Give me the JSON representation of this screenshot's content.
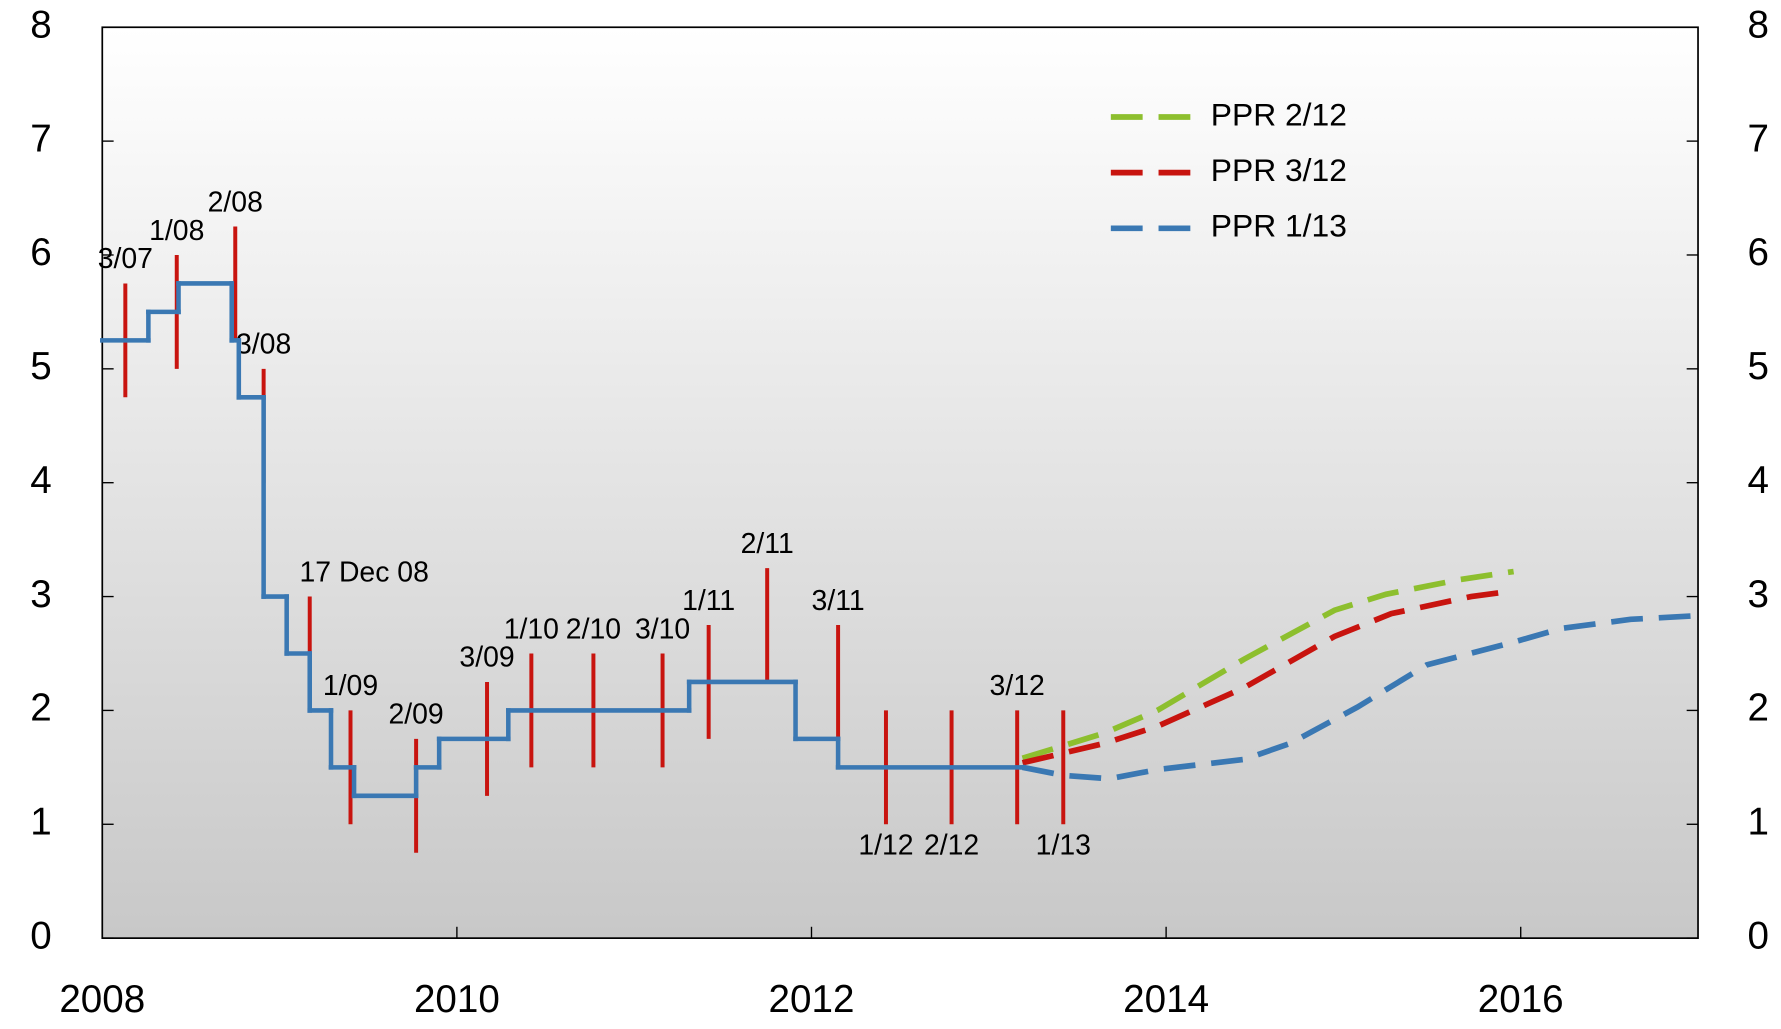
{
  "chart_data": {
    "type": "line",
    "xlim": [
      2008,
      2017
    ],
    "xticks": [
      2008,
      2010,
      2012,
      2014,
      2016
    ],
    "ylim": [
      0,
      8
    ],
    "yticks": [
      0,
      1,
      2,
      3,
      4,
      5,
      6,
      7,
      8
    ],
    "y2lim": [
      0,
      8
    ],
    "y2ticks": [
      0,
      1,
      2,
      3,
      4,
      5,
      6,
      7,
      8
    ],
    "policy_rate": {
      "step": "post",
      "color": "#3a78b3",
      "x": [
        2008.0,
        2008.26,
        2008.43,
        2008.73,
        2008.77,
        2008.91,
        2009.04,
        2009.17,
        2009.29,
        2009.42,
        2009.77,
        2009.9,
        2010.29,
        2011.31,
        2011.91,
        2012.15,
        2013.19
      ],
      "values": [
        5.25,
        5.5,
        5.75,
        5.25,
        4.75,
        3.0,
        2.5,
        2.0,
        1.5,
        1.25,
        1.5,
        1.75,
        2.0,
        2.25,
        1.75,
        1.5,
        1.5
      ]
    },
    "meetings": {
      "color": "#c8140f",
      "items": [
        {
          "label": "3/07",
          "x": 2008.13,
          "low": 4.75,
          "high": 5.75,
          "label_side": "above"
        },
        {
          "label": "1/08",
          "x": 2008.42,
          "low": 5.0,
          "high": 6.0,
          "label_side": "above"
        },
        {
          "label": "2/08",
          "x": 2008.75,
          "low": 5.25,
          "high": 6.25,
          "label_side": "above"
        },
        {
          "label": "3/08",
          "x": 2008.91,
          "low": 4.0,
          "high": 5.0,
          "label_side": "above"
        },
        {
          "label": "17 Dec 08",
          "x": 2009.17,
          "low": 2.0,
          "high": 3.0,
          "label_side": "above"
        },
        {
          "label": "1/09",
          "x": 2009.4,
          "low": 1.0,
          "high": 2.0,
          "label_side": "above"
        },
        {
          "label": "2/09",
          "x": 2009.77,
          "low": 0.75,
          "high": 1.75,
          "label_side": "above"
        },
        {
          "label": "3/09",
          "x": 2010.17,
          "low": 1.25,
          "high": 2.25,
          "label_side": "above"
        },
        {
          "label": "1/10",
          "x": 2010.42,
          "low": 1.5,
          "high": 2.5,
          "label_side": "above"
        },
        {
          "label": "2/10",
          "x": 2010.77,
          "low": 1.5,
          "high": 2.5,
          "label_side": "above"
        },
        {
          "label": "3/10",
          "x": 2011.16,
          "low": 1.5,
          "high": 2.5,
          "label_side": "above"
        },
        {
          "label": "1/11",
          "x": 2011.42,
          "low": 1.75,
          "high": 2.75,
          "label_side": "above"
        },
        {
          "label": "2/11",
          "x": 2011.75,
          "low": 2.25,
          "high": 3.25,
          "label_side": "above"
        },
        {
          "label": "3/11",
          "x": 2012.15,
          "low": 1.75,
          "high": 2.75,
          "label_side": "above"
        },
        {
          "label": "1/12",
          "x": 2012.42,
          "low": 1.0,
          "high": 2.0,
          "label_side": "below"
        },
        {
          "label": "2/12",
          "x": 2012.79,
          "low": 1.0,
          "high": 2.0,
          "label_side": "below"
        },
        {
          "label": "3/12",
          "x": 2013.16,
          "low": 1.0,
          "high": 2.0,
          "label_side": "above"
        },
        {
          "label": "1/13",
          "x": 2013.42,
          "low": 1.0,
          "high": 2.0,
          "label_side": "below"
        }
      ]
    },
    "series": [
      {
        "name": "PPR 2/12",
        "color": "#8dbf2e",
        "x": [
          2013.19,
          2013.65,
          2013.95,
          2014.44,
          2014.95,
          2015.24,
          2015.66,
          2015.96
        ],
        "values": [
          1.58,
          1.8,
          2.0,
          2.45,
          2.88,
          3.02,
          3.15,
          3.22
        ]
      },
      {
        "name": "PPR 3/12",
        "color": "#c8140f",
        "x": [
          2013.19,
          2013.65,
          2013.95,
          2014.44,
          2014.95,
          2015.27,
          2015.72,
          2015.96
        ],
        "values": [
          1.54,
          1.71,
          1.86,
          2.2,
          2.65,
          2.85,
          3.0,
          3.05
        ]
      },
      {
        "name": "PPR 1/13",
        "color": "#3a78b3",
        "x": [
          2013.19,
          2013.42,
          2013.68,
          2013.95,
          2014.44,
          2014.7,
          2015.08,
          2015.47,
          2015.96,
          2016.23,
          2016.62,
          2016.97
        ],
        "values": [
          1.5,
          1.43,
          1.4,
          1.48,
          1.57,
          1.71,
          2.03,
          2.4,
          2.6,
          2.72,
          2.8,
          2.83
        ]
      }
    ],
    "legend": "upper right"
  }
}
